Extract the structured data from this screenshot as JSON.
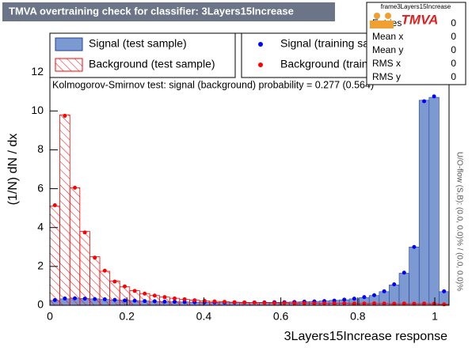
{
  "title": "TMVA overtraining check for classifier: 3Layers15Increase",
  "chart_data": {
    "type": "histogram",
    "x_label": "3Layers15Increase response",
    "y_label": "(1/N) dN / dx",
    "annotation": "Kolmogorov-Smirnov test: signal (background) probability = 0.277 (0.564)",
    "side_note": "U/O-flow (S,B): (0.0, 0.0)% / (0.0, 0.0)%",
    "xlim": [
      0,
      1.037
    ],
    "ylim": [
      0,
      14
    ],
    "xticks": [
      0,
      0.2,
      0.4,
      0.6,
      0.8,
      1
    ],
    "yticks": [
      0,
      2,
      4,
      6,
      8,
      10,
      12
    ],
    "bins": [
      0,
      0.0259,
      0.0519,
      0.0778,
      0.1037,
      0.1296,
      0.1556,
      0.1815,
      0.2074,
      0.2333,
      0.2593,
      0.2852,
      0.3111,
      0.337,
      0.363,
      0.3889,
      0.4148,
      0.4407,
      0.4667,
      0.4926,
      0.5185,
      0.5444,
      0.5704,
      0.5963,
      0.6222,
      0.6481,
      0.6741,
      0.7,
      0.7259,
      0.7519,
      0.7778,
      0.8037,
      0.8296,
      0.8556,
      0.8815,
      0.9074,
      0.9333,
      0.9593,
      0.9852,
      1.0111,
      1.037
    ],
    "series": [
      {
        "name": "Signal (test sample)",
        "color": "#7d99d1",
        "style": "fill",
        "values": [
          0.25,
          0.33,
          0.37,
          0.35,
          0.33,
          0.3,
          0.28,
          0.26,
          0.24,
          0.22,
          0.2,
          0.19,
          0.18,
          0.17,
          0.16,
          0.15,
          0.15,
          0.14,
          0.14,
          0.14,
          0.14,
          0.15,
          0.15,
          0.16,
          0.17,
          0.18,
          0.2,
          0.22,
          0.25,
          0.28,
          0.33,
          0.4,
          0.5,
          0.7,
          1.05,
          1.65,
          3.0,
          10.55,
          10.7,
          0.7
        ]
      },
      {
        "name": "Background (test sample)",
        "color": "#ff0000",
        "style": "hatch",
        "values": [
          5.1,
          9.8,
          6.05,
          3.8,
          2.5,
          1.75,
          1.25,
          0.95,
          0.75,
          0.6,
          0.5,
          0.42,
          0.36,
          0.3,
          0.26,
          0.22,
          0.2,
          0.18,
          0.16,
          0.15,
          0.14,
          0.13,
          0.12,
          0.12,
          0.11,
          0.11,
          0.1,
          0.1,
          0.1,
          0.1,
          0.09,
          0.09,
          0.09,
          0.09,
          0.08,
          0.08,
          0.08,
          0.08,
          0.08,
          0.05
        ]
      },
      {
        "name": "Signal (training sample)",
        "color": "#0000ff",
        "style": "points",
        "values": [
          0.27,
          0.35,
          0.36,
          0.34,
          0.32,
          0.31,
          0.28,
          0.25,
          0.24,
          0.22,
          0.21,
          0.19,
          0.18,
          0.17,
          0.16,
          0.16,
          0.15,
          0.14,
          0.14,
          0.14,
          0.15,
          0.15,
          0.16,
          0.16,
          0.17,
          0.19,
          0.2,
          0.22,
          0.24,
          0.29,
          0.34,
          0.42,
          0.52,
          0.72,
          1.08,
          1.68,
          3.0,
          10.5,
          10.75,
          0.72
        ]
      },
      {
        "name": "Background (training sample)",
        "color": "#ff0000",
        "style": "points",
        "values": [
          5.15,
          9.75,
          6.05,
          3.75,
          2.45,
          1.78,
          1.22,
          0.97,
          0.74,
          0.6,
          0.5,
          0.42,
          0.35,
          0.31,
          0.26,
          0.23,
          0.2,
          0.18,
          0.16,
          0.15,
          0.14,
          0.13,
          0.12,
          0.12,
          0.11,
          0.11,
          0.1,
          0.1,
          0.1,
          0.1,
          0.09,
          0.09,
          0.1,
          0.09,
          0.08,
          0.09,
          0.08,
          0.09,
          0.08,
          0.05
        ]
      }
    ]
  },
  "stats": {
    "name": "frame3Layers15Increase",
    "logo": "TMVA",
    "rows": [
      {
        "label": "Entries",
        "value": 0
      },
      {
        "label": "Mean x",
        "value": 0
      },
      {
        "label": "Mean y",
        "value": 0
      },
      {
        "label": "RMS x",
        "value": 0
      },
      {
        "label": "RMS y",
        "value": 0
      }
    ]
  }
}
